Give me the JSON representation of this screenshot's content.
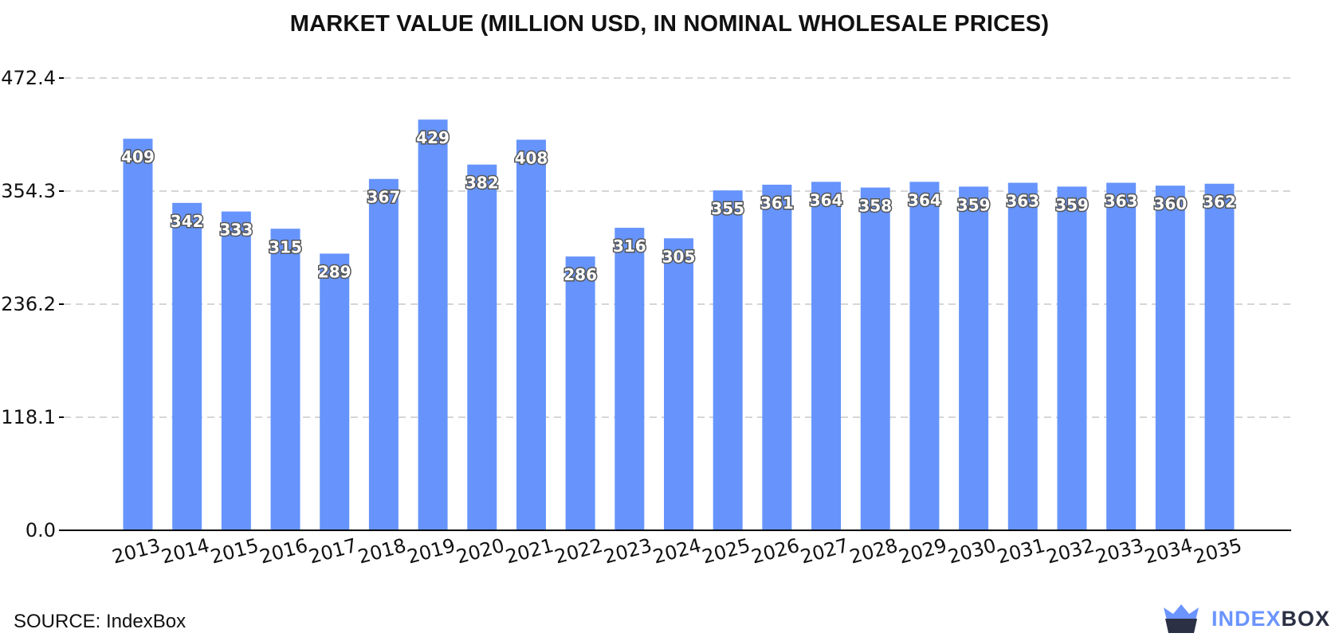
{
  "chart_data": {
    "type": "bar",
    "title": "MARKET VALUE (MILLION USD, IN NOMINAL WHOLESALE PRICES)",
    "xlabel": "",
    "ylabel": "",
    "categories": [
      "2013",
      "2014",
      "2015",
      "2016",
      "2017",
      "2018",
      "2019",
      "2020",
      "2021",
      "2022",
      "2023",
      "2024",
      "2025",
      "2026",
      "2027",
      "2028",
      "2029",
      "2030",
      "2031",
      "2032",
      "2033",
      "2034",
      "2035"
    ],
    "values": [
      409,
      342,
      333,
      315,
      289,
      367,
      429,
      382,
      408,
      286,
      316,
      305,
      355,
      361,
      364,
      358,
      364,
      359,
      363,
      359,
      363,
      360,
      362
    ],
    "value_labels": [
      "409",
      "342",
      "333",
      "315",
      "289",
      "367",
      "429",
      "382",
      "408",
      "286",
      "316",
      "305",
      "355",
      "361",
      "364",
      "358",
      "364",
      "359",
      "363",
      "359",
      "363",
      "360",
      "362"
    ],
    "yticks": [
      0.0,
      118.1,
      236.2,
      354.3,
      472.4
    ],
    "ytick_labels": [
      "0.0",
      "118.1",
      "236.2",
      "354.3",
      "472.4"
    ],
    "ylim": [
      0,
      472.4
    ],
    "grid": "horizontal dashed",
    "bar_color": "#6694fc"
  },
  "footer": {
    "source": "SOURCE: IndexBox"
  },
  "brand": {
    "name_part1": "INDEX",
    "name_part2": "BOX",
    "icon": "crown-box-icon",
    "color_part1": "#6b94ff",
    "color_part2": "#2b3044"
  }
}
